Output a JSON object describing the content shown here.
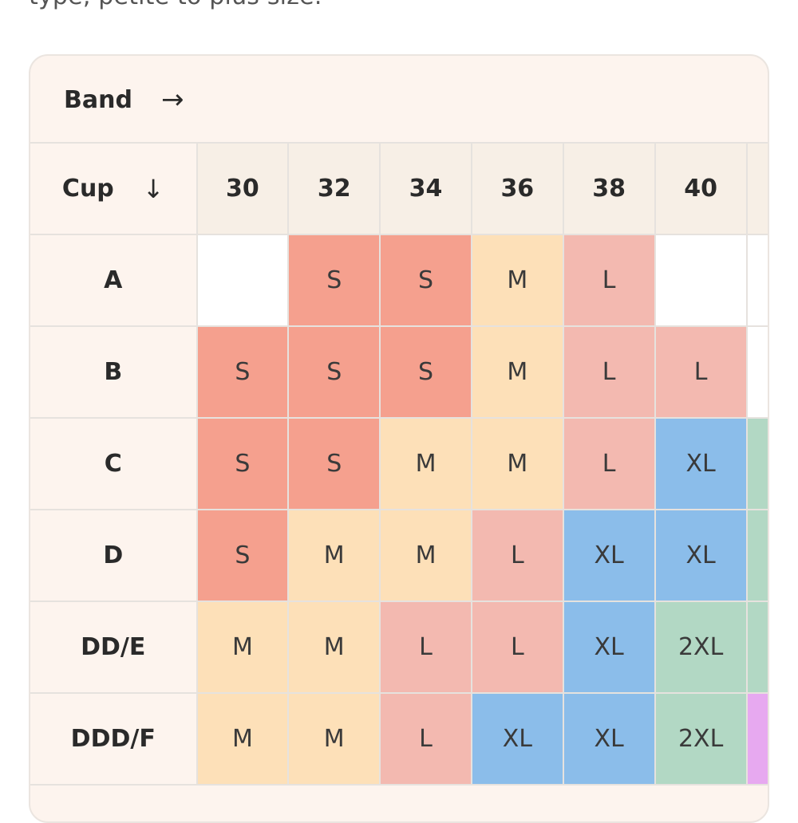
{
  "intro_text": "type, petite to plus size.",
  "band_header": {
    "label": "Band",
    "arrow": "→"
  },
  "cup_header": {
    "label": "Cup",
    "arrow": "↓"
  },
  "bands": [
    "30",
    "32",
    "34",
    "36",
    "38",
    "40"
  ],
  "rows": [
    {
      "cup": "A",
      "sizes": [
        "",
        "S",
        "S",
        "M",
        "L",
        ""
      ]
    },
    {
      "cup": "B",
      "sizes": [
        "S",
        "S",
        "S",
        "M",
        "L",
        "L"
      ]
    },
    {
      "cup": "C",
      "sizes": [
        "S",
        "S",
        "M",
        "M",
        "L",
        "XL"
      ]
    },
    {
      "cup": "D",
      "sizes": [
        "S",
        "M",
        "M",
        "L",
        "XL",
        "XL"
      ]
    },
    {
      "cup": "DD/E",
      "sizes": [
        "M",
        "M",
        "L",
        "L",
        "XL",
        "2XL"
      ]
    },
    {
      "cup": "DDD/F",
      "sizes": [
        "M",
        "M",
        "L",
        "XL",
        "XL",
        "2XL"
      ]
    }
  ],
  "size_colors": {
    "S": "#f5a08e",
    "M": "#fde0b8",
    "L": "#f3b9b0",
    "XL": "#8bbdea",
    "2XL": "#b2d8c4"
  }
}
